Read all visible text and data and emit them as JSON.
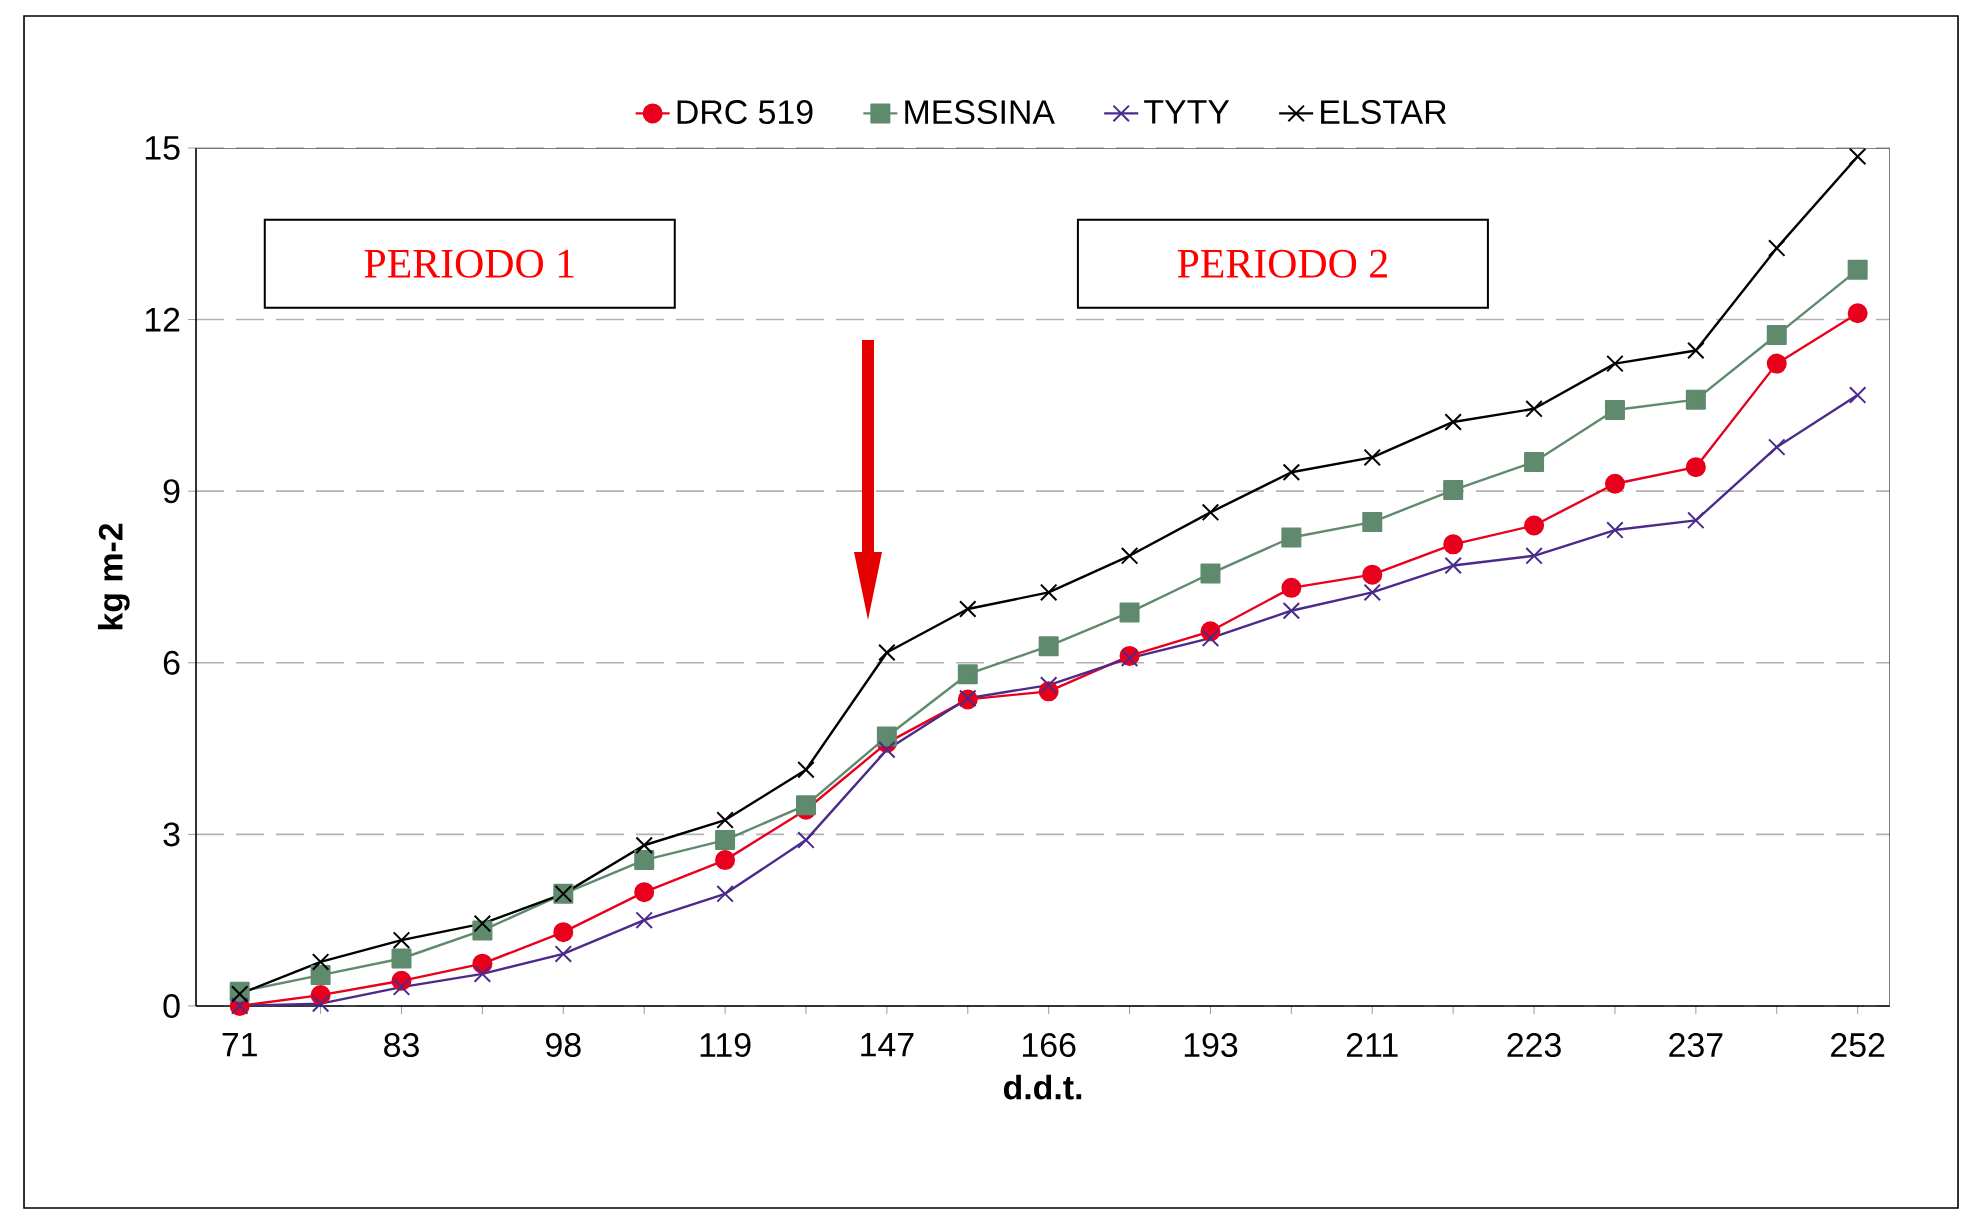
{
  "chart_data": {
    "type": "line",
    "xlabel": "d.d.t.",
    "ylabel": "kg m-2",
    "categories": [
      "71",
      null,
      "83",
      null,
      "98",
      null,
      "119",
      null,
      "147",
      null,
      "166",
      null,
      "193",
      null,
      "211",
      null,
      "223",
      null,
      "237",
      null,
      "252"
    ],
    "ylim": [
      0,
      15
    ],
    "yticks": [
      0,
      3,
      6,
      9,
      12,
      15
    ],
    "grid": "y",
    "legend": "top",
    "annotations": [
      "PERIODO 1",
      "PERIODO 2"
    ],
    "series": [
      {
        "name": "DRC 519",
        "color": "#e8001c",
        "marker": "circle",
        "values": [
          0,
          0.19,
          0.44,
          0.74,
          1.29,
          1.99,
          2.55,
          3.43,
          4.6,
          5.36,
          5.5,
          6.12,
          6.55,
          7.31,
          7.54,
          8.07,
          8.4,
          9.13,
          9.42,
          11.23,
          12.11
        ]
      },
      {
        "name": "MESSINA",
        "color": "#5f8a6e",
        "marker": "square",
        "values": [
          0.25,
          0.54,
          0.83,
          1.32,
          1.96,
          2.55,
          2.9,
          3.51,
          4.71,
          5.8,
          6.29,
          6.88,
          7.56,
          8.19,
          8.46,
          9.02,
          9.51,
          10.42,
          10.6,
          11.73,
          12.87
        ]
      },
      {
        "name": "TYTY",
        "color": "#4b2a8c",
        "marker": "cross",
        "values": [
          0,
          0.04,
          0.33,
          0.56,
          0.91,
          1.5,
          1.96,
          2.9,
          4.48,
          5.38,
          5.61,
          6.08,
          6.43,
          6.91,
          7.23,
          7.7,
          7.87,
          8.32,
          8.49,
          9.77,
          10.68
        ]
      },
      {
        "name": "ELSTAR",
        "color": "#000000",
        "marker": "cross",
        "values": [
          0.21,
          0.77,
          1.15,
          1.44,
          1.96,
          2.81,
          3.25,
          4.13,
          6.18,
          6.94,
          7.23,
          7.87,
          8.63,
          9.33,
          9.59,
          10.21,
          10.44,
          11.23,
          11.46,
          13.25,
          14.85
        ]
      }
    ]
  }
}
